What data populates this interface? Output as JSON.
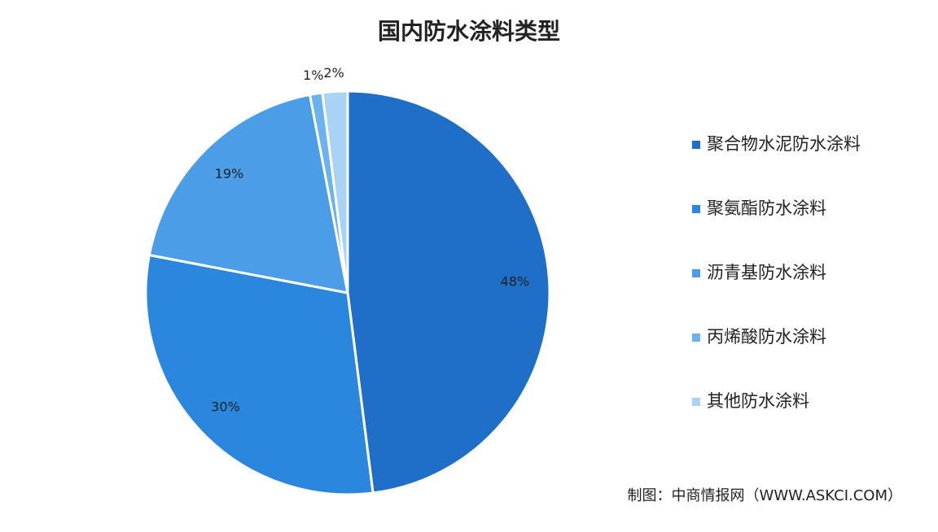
{
  "chart_data": {
    "type": "pie",
    "title": "国内防水涂料类型",
    "categories": [
      "聚合物水泥防水涂料",
      "聚氨酯防水涂料",
      "沥青基防水涂料",
      "丙烯酸防水涂料",
      "其他防水涂料"
    ],
    "values": [
      48,
      30,
      19,
      1,
      2
    ],
    "value_labels": [
      "48%",
      "30%",
      "19%",
      "1%",
      "2%"
    ],
    "colors": [
      "#1f6fc9",
      "#2b87de",
      "#4a9de6",
      "#6cb2ee",
      "#a8d3f4"
    ],
    "legend": "right",
    "source": "制图：中商情报网（WWW.ASKCI.COM）"
  }
}
